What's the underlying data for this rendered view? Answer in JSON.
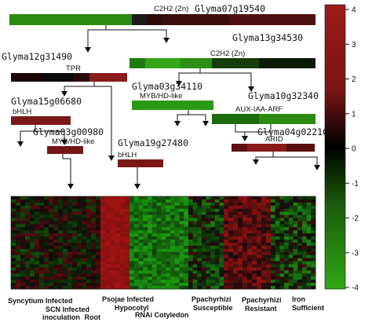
{
  "genes": [
    {
      "id": "g07",
      "name": "Glyma07g19540",
      "family": "C2H2 (Zn)"
    },
    {
      "id": "g13",
      "name": "Glyma13g34530",
      "family": "C2H2 (Zn)"
    },
    {
      "id": "g12",
      "name": "Glyma12g31490",
      "family": "TPR"
    },
    {
      "id": "g03a",
      "name": "Glyma03g34110",
      "family": "MYB/HD-like"
    },
    {
      "id": "g10",
      "name": "Glyma10g32340",
      "family": "AUX-IAA-ARF"
    },
    {
      "id": "g15",
      "name": "Glyma15g06680",
      "family": "bHLH"
    },
    {
      "id": "g04",
      "name": "Glyma04g02210",
      "family": "ARID"
    },
    {
      "id": "g03b",
      "name": "Glyma03g00980",
      "family": "MYB/HD-like"
    },
    {
      "id": "g19",
      "name": "Glyma19g27480",
      "family": "bHLH"
    }
  ],
  "conditions": [
    [
      "Syncytium Infected"
    ],
    [
      "SCN Infected",
      "inoculation",
      "Root"
    ],
    [
      "Psojae Infected",
      "Hypocotyl"
    ],
    [
      "RNAi Cotyledon"
    ],
    [
      "Ppachyrhizi",
      "Susceptible"
    ],
    [
      "Ppachyrhizi",
      "Resistant"
    ],
    [
      "Iron",
      "Sufficient"
    ]
  ],
  "colorbar": {
    "ticks": [
      "4",
      "3",
      "2",
      "1",
      "0",
      "-1",
      "-2",
      "-3",
      "-4"
    ],
    "range": [
      -4,
      4
    ],
    "high_color": "#8b1a1a",
    "mid_color": "#000000",
    "low_color": "#2a8a12"
  }
}
